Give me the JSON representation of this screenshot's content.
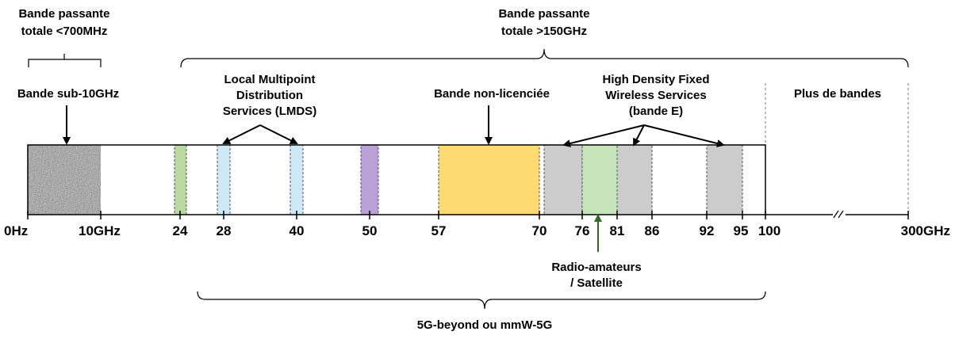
{
  "top_left": {
    "line1": "Bande passante",
    "line2": "totale <700MHz"
  },
  "top_right": {
    "line1": "Bande passante",
    "line2": "totale >150GHz"
  },
  "sub10": "Bande sub-10GHz",
  "lmds": {
    "line1": "Local Multipoint",
    "line2": "Distribution",
    "line3": "Services (LMDS)"
  },
  "unlicensed": "Bande non-licenciée",
  "ebands": {
    "line1": "High Density Fixed",
    "line2": "Wireless Services",
    "line3": "(bande E)"
  },
  "more": "Plus de bandes",
  "radio": {
    "line1": "Radio-amateurs",
    "line2": "/ Satellite"
  },
  "bottom": "5G-beyond ou mmW-5G",
  "ticks": [
    "0Hz",
    "10GHz",
    "24",
    "28",
    "40",
    "50",
    "57",
    "70",
    "76",
    "81",
    "86",
    "92",
    "95",
    "100",
    "300GHz"
  ],
  "colors": {
    "noise": "#999999",
    "green": "#b9d8a3",
    "blue": "#cde9f7",
    "purple": "#b9a0d6",
    "orange": "#fedb70",
    "gray": "#cccccc",
    "lightgreen": "#c6e5bb",
    "arrow_green": "#2e6b1f"
  }
}
